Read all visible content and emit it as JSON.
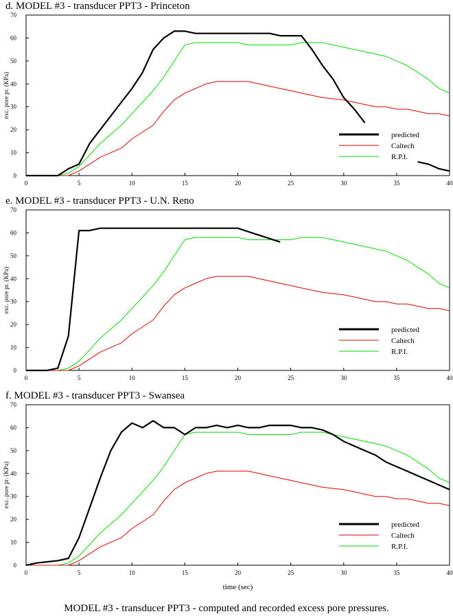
{
  "chart_data": [
    {
      "type": "line",
      "title": "d. MODEL #3 - transducer PPT3 - Princeton",
      "ylabel": "exc. pore pr. (KPa)",
      "x": [
        0,
        1,
        2,
        3,
        4,
        5,
        6,
        7,
        8,
        9,
        10,
        11,
        12,
        13,
        14,
        15,
        16,
        17,
        18,
        19,
        20,
        21,
        22,
        23,
        24,
        25,
        26,
        27,
        28,
        29,
        30,
        31,
        32,
        33,
        34,
        35,
        36,
        37,
        38,
        39,
        40
      ],
      "xlim": [
        0,
        40
      ],
      "ylim": [
        0,
        70
      ],
      "xticks": [
        0,
        5,
        10,
        15,
        20,
        25,
        30,
        35,
        40
      ],
      "yticks": [
        0,
        10,
        20,
        30,
        40,
        50,
        60,
        70
      ],
      "series": [
        {
          "name": "predicted",
          "color": "#000000",
          "values": [
            0,
            0,
            0,
            0,
            3,
            5,
            14,
            20,
            26,
            32,
            38,
            45,
            55,
            60,
            63,
            63,
            62,
            62,
            62,
            62,
            62,
            62,
            62,
            62,
            61,
            61,
            61,
            55,
            48,
            42,
            34,
            29,
            23,
            null,
            null,
            null,
            null,
            6,
            5,
            3,
            2
          ]
        },
        {
          "name": "Caltech",
          "color": "#e00000",
          "values": [
            0,
            0,
            0,
            0,
            0,
            2,
            5,
            8,
            10,
            12,
            16,
            19,
            22,
            28,
            33,
            36,
            38,
            40,
            41,
            41,
            41,
            41,
            40,
            39,
            38,
            37,
            36,
            35,
            34,
            33.5,
            33,
            32,
            31,
            30,
            30,
            29,
            29,
            28,
            27,
            27,
            26
          ]
        },
        {
          "name": "R.P.I.",
          "color": "#00dd00",
          "values": [
            0,
            0,
            0,
            0,
            1,
            4,
            9,
            14,
            18,
            22,
            27,
            32,
            37,
            43,
            50,
            57,
            58,
            58,
            58,
            58,
            58,
            57,
            57,
            57,
            57,
            57,
            58,
            58,
            58,
            57,
            56,
            55,
            54,
            53,
            52,
            50,
            48,
            45,
            42,
            38,
            36
          ]
        }
      ]
    },
    {
      "type": "line",
      "title": "e. MODEL #3 - transducer PPT3 - U.N. Reno",
      "ylabel": "exc. pore pr. (KPa)",
      "x": [
        0,
        1,
        2,
        3,
        4,
        5,
        6,
        7,
        8,
        9,
        10,
        11,
        12,
        13,
        14,
        15,
        16,
        17,
        18,
        19,
        20,
        21,
        22,
        23,
        24,
        25,
        26,
        27,
        28,
        29,
        30,
        31,
        32,
        33,
        34,
        35,
        36,
        37,
        38,
        39,
        40
      ],
      "xlim": [
        0,
        40
      ],
      "ylim": [
        0,
        70
      ],
      "xticks": [
        0,
        5,
        10,
        15,
        20,
        25,
        30,
        35,
        40
      ],
      "yticks": [
        0,
        10,
        20,
        30,
        40,
        50,
        60,
        70
      ],
      "series": [
        {
          "name": "predicted",
          "color": "#000000",
          "values": [
            0,
            0,
            0,
            1,
            15,
            61,
            61,
            62,
            62,
            62,
            62,
            62,
            62,
            62,
            62,
            62,
            62,
            62,
            62,
            62,
            62,
            60.5,
            59,
            57.5,
            56,
            null,
            null,
            null,
            null,
            null,
            null,
            null,
            null,
            null,
            null,
            null,
            null,
            null,
            null,
            null,
            null
          ]
        },
        {
          "name": "Caltech",
          "color": "#e00000",
          "values": [
            0,
            0,
            0,
            0,
            0,
            2,
            5,
            8,
            10,
            12,
            16,
            19,
            22,
            28,
            33,
            36,
            38,
            40,
            41,
            41,
            41,
            41,
            40,
            39,
            38,
            37,
            36,
            35,
            34,
            33.5,
            33,
            32,
            31,
            30,
            30,
            29,
            29,
            28,
            27,
            27,
            26
          ]
        },
        {
          "name": "R.P.I.",
          "color": "#00dd00",
          "values": [
            0,
            0,
            0,
            0,
            1,
            4,
            9,
            14,
            18,
            22,
            27,
            32,
            37,
            43,
            50,
            57,
            58,
            58,
            58,
            58,
            58,
            57,
            57,
            57,
            57,
            57,
            58,
            58,
            58,
            57,
            56,
            55,
            54,
            53,
            52,
            50,
            48,
            45,
            42,
            38,
            36
          ]
        }
      ]
    },
    {
      "type": "line",
      "title": "f. MODEL #3 - transducer PPT3 - Swansea",
      "ylabel": "exc. pore pr. (KPa)",
      "xlabel": "time (sec)",
      "x": [
        0,
        1,
        2,
        3,
        4,
        5,
        6,
        7,
        8,
        9,
        10,
        11,
        12,
        13,
        14,
        15,
        16,
        17,
        18,
        19,
        20,
        21,
        22,
        23,
        24,
        25,
        26,
        27,
        28,
        29,
        30,
        31,
        32,
        33,
        34,
        35,
        36,
        37,
        38,
        39,
        40
      ],
      "xlim": [
        0,
        40
      ],
      "ylim": [
        0,
        70
      ],
      "xticks": [
        0,
        5,
        10,
        15,
        20,
        25,
        30,
        35,
        40
      ],
      "yticks": [
        0,
        10,
        20,
        30,
        40,
        50,
        60,
        70
      ],
      "series": [
        {
          "name": "predicted",
          "color": "#000000",
          "values": [
            0,
            1,
            1.5,
            2,
            3,
            12,
            25,
            38,
            50,
            58,
            62,
            60,
            63,
            60,
            60,
            57,
            60,
            60,
            61,
            60,
            61,
            60,
            60,
            61,
            61,
            61,
            60,
            60,
            59,
            57,
            54,
            52,
            50,
            48,
            45,
            43,
            41,
            39,
            37,
            35,
            33
          ]
        },
        {
          "name": "Caltech",
          "color": "#e00000",
          "values": [
            0,
            0,
            0,
            0,
            0,
            2,
            5,
            8,
            10,
            12,
            16,
            19,
            22,
            28,
            33,
            36,
            38,
            40,
            41,
            41,
            41,
            41,
            40,
            39,
            38,
            37,
            36,
            35,
            34,
            33.5,
            33,
            32,
            31,
            30,
            30,
            29,
            29,
            28,
            27,
            27,
            26
          ]
        },
        {
          "name": "R.P.I.",
          "color": "#00dd00",
          "values": [
            0,
            0,
            0,
            0,
            1,
            4,
            9,
            14,
            18,
            22,
            27,
            32,
            37,
            43,
            50,
            57,
            58,
            58,
            58,
            58,
            58,
            57,
            57,
            57,
            57,
            57,
            58,
            58,
            58,
            57,
            56,
            55,
            54,
            53,
            52,
            50,
            48,
            45,
            42,
            38,
            36
          ]
        }
      ]
    }
  ],
  "caption": "MODEL #3 - transducer PPT3 - computed and recorded excess pore pressures."
}
